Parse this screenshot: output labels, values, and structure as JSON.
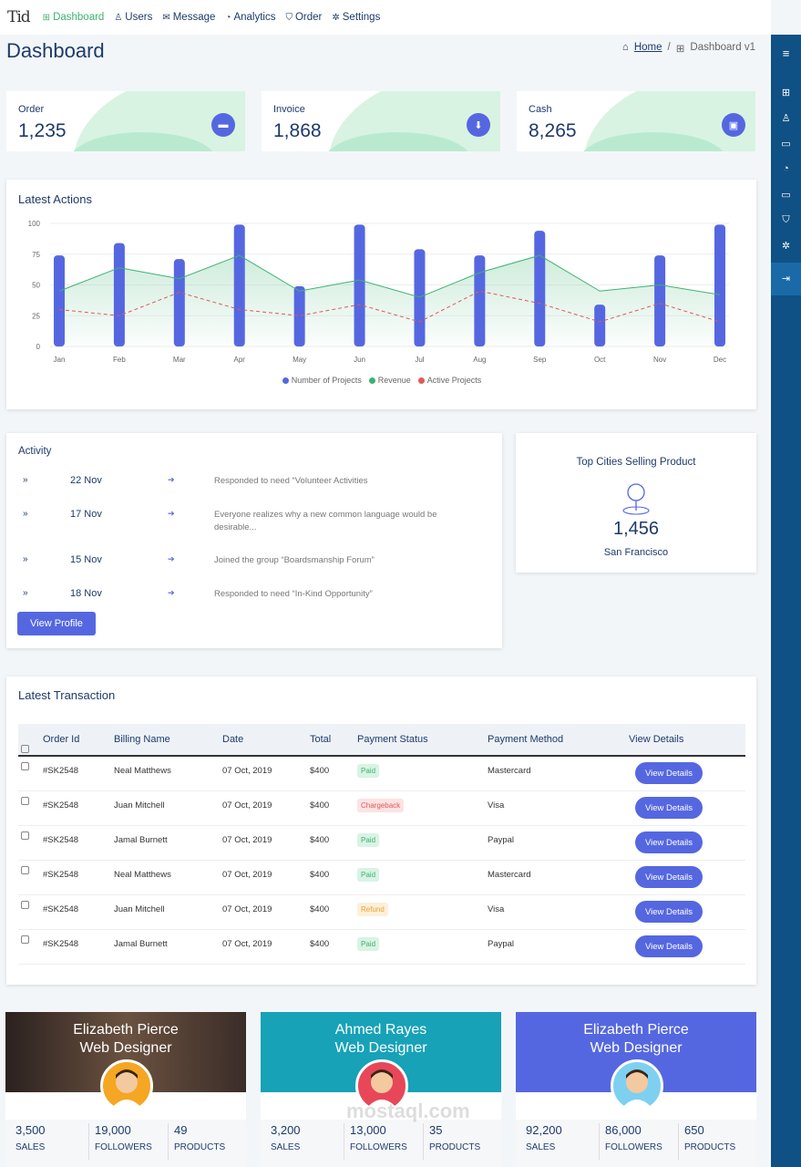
{
  "topnav": {
    "logo": "Tid",
    "items": [
      {
        "label": "Dashboard",
        "icon": "grid-icon",
        "glyph": "⊞"
      },
      {
        "label": "Users",
        "icon": "user-icon",
        "glyph": "♙"
      },
      {
        "label": "Message",
        "icon": "message-icon",
        "glyph": "✉"
      },
      {
        "label": "Analytics",
        "icon": "pie-chart-icon",
        "glyph": "◔"
      },
      {
        "label": "Order",
        "icon": "cart-icon",
        "glyph": "⛉"
      },
      {
        "label": "Settings",
        "icon": "gear-icon",
        "glyph": "✲"
      }
    ]
  },
  "page": {
    "title": "Dashboard",
    "breadcrumb_home": "Home",
    "breadcrumb_sep": "/",
    "breadcrumb_current": "Dashboard v1"
  },
  "stats": [
    {
      "label": "Order",
      "value": "1,235",
      "icon": "folder-icon",
      "glyph": "▬"
    },
    {
      "label": "Invoice",
      "value": "1,868",
      "icon": "download-icon",
      "glyph": "⬇"
    },
    {
      "label": "Cash",
      "value": "8,265",
      "icon": "wallet-icon",
      "glyph": "▣"
    }
  ],
  "latest_actions": {
    "title": "Latest Actions",
    "legend": [
      "Number of Projects",
      "Revenue",
      "Active Projects"
    ]
  },
  "chart_data": {
    "type": "bar",
    "categories": [
      "Jan",
      "Feb",
      "Mar",
      "Apr",
      "May",
      "Jun",
      "Jul",
      "Aug",
      "Sep",
      "Oct",
      "Nov",
      "Dec"
    ],
    "series": [
      {
        "name": "Number of Projects",
        "type": "bar",
        "color": "#5567e0",
        "values": [
          74,
          84,
          71,
          99,
          49,
          99,
          79,
          74,
          94,
          34,
          74,
          99
        ]
      },
      {
        "name": "Revenue",
        "type": "area",
        "color": "#3cb371",
        "values": [
          45,
          64,
          55,
          74,
          45,
          54,
          40,
          60,
          74,
          45,
          50,
          42
        ]
      },
      {
        "name": "Active Projects",
        "type": "line-dashed",
        "color": "#e05a5a",
        "values": [
          30,
          25,
          44,
          30,
          25,
          34,
          20,
          45,
          35,
          20,
          35,
          20
        ]
      }
    ],
    "yticks": [
      0,
      25,
      50,
      75,
      100
    ],
    "ylim": [
      0,
      100
    ],
    "legend_position": "bottom"
  },
  "activity": {
    "title": "Activity",
    "items": [
      {
        "date": "22 Nov",
        "text": "Responded to need “Volunteer Activities"
      },
      {
        "date": "17 Nov",
        "text": "Everyone realizes why a new common language would be desirable..."
      },
      {
        "date": "15 Nov",
        "text": "Joined the group “Boardsmanship Forum”"
      },
      {
        "date": "18 Nov",
        "text": "Responded to need “In-Kind Opportunity”"
      }
    ],
    "button": "View Profile"
  },
  "top_cities": {
    "title": "Top Cities Selling Product",
    "value": "1,456",
    "city": "San Francisco",
    "icon": "map-pin-icon"
  },
  "transactions": {
    "title": "Latest Transaction",
    "headers": [
      "Order Id",
      "Billing Name",
      "Date",
      "Total",
      "Payment Status",
      "Payment Method",
      "View Details"
    ],
    "rows": [
      {
        "id": "#SK2548",
        "name": "Neal Matthews",
        "date": "07 Oct, 2019",
        "total": "$400",
        "status": "Paid",
        "status_type": "paid",
        "method": "Mastercard",
        "button": "View Details"
      },
      {
        "id": "#SK2548",
        "name": "Juan Mitchell",
        "date": "07 Oct, 2019",
        "total": "$400",
        "status": "Chargeback",
        "status_type": "chargeback",
        "method": "Visa",
        "button": "View Details"
      },
      {
        "id": "#SK2548",
        "name": "Jamal Burnett",
        "date": "07 Oct, 2019",
        "total": "$400",
        "status": "Paid",
        "status_type": "paid",
        "method": "Paypal",
        "button": "View Details"
      },
      {
        "id": "#SK2548",
        "name": "Neal Matthews",
        "date": "07 Oct, 2019",
        "total": "$400",
        "status": "Paid",
        "status_type": "paid",
        "method": "Mastercard",
        "button": "View Details"
      },
      {
        "id": "#SK2548",
        "name": "Juan Mitchell",
        "date": "07 Oct, 2019",
        "total": "$400",
        "status": "Refund",
        "status_type": "refund",
        "method": "Visa",
        "button": "View Details"
      },
      {
        "id": "#SK2548",
        "name": "Jamal Burnett",
        "date": "07 Oct, 2019",
        "total": "$400",
        "status": "Paid",
        "status_type": "paid",
        "method": "Paypal",
        "button": "View Details"
      }
    ]
  },
  "profiles": [
    {
      "name": "Elizabeth Pierce",
      "role": "Web Designer",
      "sales": "3,500",
      "followers": "19,000",
      "products": "49",
      "banner_color": "#3a2a24"
    },
    {
      "name": "Ahmed Rayes",
      "role": "Web Designer",
      "sales": "3,200",
      "followers": "13,000",
      "products": "35",
      "banner_color": "#17a2b8"
    },
    {
      "name": "Elizabeth Pierce",
      "role": "Web Designer",
      "sales": "92,200",
      "followers": "86,000",
      "products": "650",
      "banner_color": "#5567e0"
    }
  ],
  "profile_labels": {
    "sales": "SALES",
    "followers": "FOLLOWERS",
    "products": "PRODUCTS"
  },
  "rightbar_icons": [
    "menu-icon",
    "grid-icon",
    "user-icon",
    "message-icon",
    "pie-chart-icon",
    "folder-icon",
    "cart-icon",
    "gear-icon",
    "logout-icon"
  ],
  "watermark": "mostaql.com"
}
